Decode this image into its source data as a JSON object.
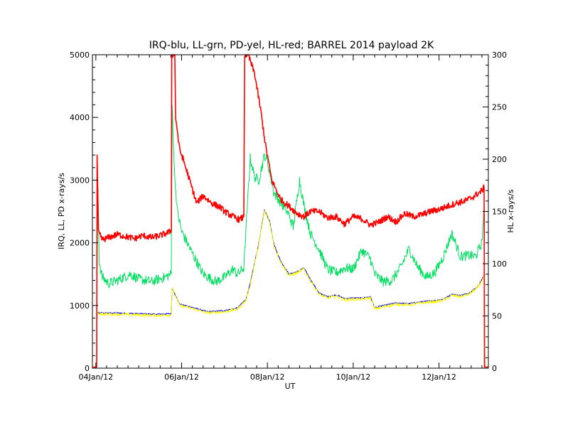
{
  "chart_data": {
    "type": "line",
    "title": "IRQ-blu, LL-grn, PD-yel, HL-red; BARREL 2014 payload 2K",
    "xlabel": "UT",
    "ylabel_left": "IRQ, LL, PD x-rays/s",
    "ylabel_right": "HL x-rays/s",
    "x_range_days": [
      3.92,
      13.15
    ],
    "x_ticks": [
      {
        "value": 4,
        "label": "04Jan/12"
      },
      {
        "value": 6,
        "label": "06Jan/12"
      },
      {
        "value": 8,
        "label": "08Jan/12"
      },
      {
        "value": 10,
        "label": "10Jan/12"
      },
      {
        "value": 12,
        "label": "12Jan/12"
      }
    ],
    "y_left": {
      "range": [
        0,
        5000
      ],
      "ticks": [
        0,
        1000,
        2000,
        3000,
        4000,
        5000
      ]
    },
    "y_right": {
      "range": [
        0,
        300
      ],
      "ticks": [
        0,
        50,
        100,
        150,
        200,
        250,
        300
      ]
    },
    "series": [
      {
        "name": "IRQ",
        "color": "#0000ff",
        "axis": "left",
        "noise": 10,
        "points": [
          [
            3.92,
            20
          ],
          [
            4.02,
            20
          ],
          [
            4.03,
            880
          ],
          [
            4.2,
            880
          ],
          [
            4.5,
            880
          ],
          [
            5.0,
            870
          ],
          [
            5.4,
            860
          ],
          [
            5.76,
            870
          ],
          [
            5.78,
            1280
          ],
          [
            5.95,
            1020
          ],
          [
            6.2,
            980
          ],
          [
            6.6,
            900
          ],
          [
            7.0,
            920
          ],
          [
            7.3,
            960
          ],
          [
            7.5,
            1100
          ],
          [
            7.6,
            1350
          ],
          [
            7.8,
            2000
          ],
          [
            7.93,
            2520
          ],
          [
            8.05,
            2350
          ],
          [
            8.15,
            1980
          ],
          [
            8.3,
            1720
          ],
          [
            8.5,
            1500
          ],
          [
            8.7,
            1540
          ],
          [
            8.85,
            1600
          ],
          [
            9.0,
            1420
          ],
          [
            9.2,
            1200
          ],
          [
            9.4,
            1140
          ],
          [
            9.6,
            1170
          ],
          [
            9.8,
            1110
          ],
          [
            10.0,
            1120
          ],
          [
            10.2,
            1120
          ],
          [
            10.4,
            1140
          ],
          [
            10.5,
            960
          ],
          [
            10.7,
            1000
          ],
          [
            11.0,
            1040
          ],
          [
            11.3,
            1030
          ],
          [
            11.6,
            1060
          ],
          [
            11.9,
            1080
          ],
          [
            12.1,
            1100
          ],
          [
            12.3,
            1180
          ],
          [
            12.5,
            1160
          ],
          [
            12.7,
            1200
          ],
          [
            12.9,
            1300
          ],
          [
            13.05,
            1480
          ],
          [
            13.07,
            20
          ],
          [
            13.15,
            20
          ]
        ]
      },
      {
        "name": "LL",
        "color": "#00e060",
        "axis": "left",
        "noise": 80,
        "points": [
          [
            3.92,
            20
          ],
          [
            4.02,
            20
          ],
          [
            4.03,
            1500
          ],
          [
            4.05,
            2900
          ],
          [
            4.08,
            1700
          ],
          [
            4.15,
            1450
          ],
          [
            4.3,
            1350
          ],
          [
            4.5,
            1400
          ],
          [
            4.8,
            1500
          ],
          [
            5.0,
            1420
          ],
          [
            5.3,
            1380
          ],
          [
            5.6,
            1450
          ],
          [
            5.76,
            1500
          ],
          [
            5.78,
            4200
          ],
          [
            5.83,
            3150
          ],
          [
            5.9,
            2500
          ],
          [
            6.0,
            2180
          ],
          [
            6.2,
            1900
          ],
          [
            6.5,
            1500
          ],
          [
            6.8,
            1380
          ],
          [
            7.0,
            1450
          ],
          [
            7.2,
            1580
          ],
          [
            7.3,
            1500
          ],
          [
            7.45,
            1600
          ],
          [
            7.55,
            2800
          ],
          [
            7.6,
            3350
          ],
          [
            7.7,
            3050
          ],
          [
            7.8,
            3000
          ],
          [
            7.93,
            3400
          ],
          [
            8.0,
            3300
          ],
          [
            8.15,
            2800
          ],
          [
            8.3,
            2650
          ],
          [
            8.5,
            2450
          ],
          [
            8.6,
            2250
          ],
          [
            8.75,
            3000
          ],
          [
            8.85,
            2600
          ],
          [
            9.0,
            2150
          ],
          [
            9.2,
            1900
          ],
          [
            9.4,
            1580
          ],
          [
            9.6,
            1520
          ],
          [
            9.8,
            1600
          ],
          [
            10.0,
            1580
          ],
          [
            10.2,
            1880
          ],
          [
            10.4,
            1750
          ],
          [
            10.5,
            1500
          ],
          [
            10.7,
            1380
          ],
          [
            10.9,
            1400
          ],
          [
            11.1,
            1600
          ],
          [
            11.3,
            1900
          ],
          [
            11.5,
            1620
          ],
          [
            11.7,
            1450
          ],
          [
            11.9,
            1520
          ],
          [
            12.1,
            1780
          ],
          [
            12.3,
            2150
          ],
          [
            12.5,
            1780
          ],
          [
            12.7,
            1800
          ],
          [
            12.85,
            1780
          ],
          [
            13.0,
            2000
          ],
          [
            13.05,
            2600
          ],
          [
            13.07,
            20
          ],
          [
            13.15,
            20
          ]
        ]
      },
      {
        "name": "PD",
        "color": "#ffff00",
        "axis": "left",
        "noise": 25,
        "points": [
          [
            3.92,
            20
          ],
          [
            4.02,
            20
          ],
          [
            4.03,
            880
          ],
          [
            4.2,
            860
          ],
          [
            4.5,
            860
          ],
          [
            5.0,
            850
          ],
          [
            5.4,
            840
          ],
          [
            5.76,
            850
          ],
          [
            5.78,
            1300
          ],
          [
            5.95,
            1000
          ],
          [
            6.2,
            960
          ],
          [
            6.6,
            880
          ],
          [
            7.0,
            900
          ],
          [
            7.3,
            940
          ],
          [
            7.5,
            1080
          ],
          [
            7.6,
            1330
          ],
          [
            7.8,
            1980
          ],
          [
            7.93,
            2500
          ],
          [
            8.05,
            2330
          ],
          [
            8.15,
            1960
          ],
          [
            8.3,
            1700
          ],
          [
            8.5,
            1480
          ],
          [
            8.7,
            1520
          ],
          [
            8.85,
            1580
          ],
          [
            9.0,
            1400
          ],
          [
            9.2,
            1180
          ],
          [
            9.4,
            1120
          ],
          [
            9.6,
            1150
          ],
          [
            9.8,
            1090
          ],
          [
            10.0,
            1100
          ],
          [
            10.2,
            1100
          ],
          [
            10.4,
            1120
          ],
          [
            10.5,
            940
          ],
          [
            10.7,
            980
          ],
          [
            11.0,
            1020
          ],
          [
            11.3,
            1010
          ],
          [
            11.6,
            1040
          ],
          [
            11.9,
            1060
          ],
          [
            12.1,
            1080
          ],
          [
            12.3,
            1160
          ],
          [
            12.5,
            1140
          ],
          [
            12.7,
            1180
          ],
          [
            12.9,
            1280
          ],
          [
            13.05,
            1460
          ],
          [
            13.07,
            20
          ],
          [
            13.15,
            20
          ]
        ]
      },
      {
        "name": "HL",
        "color": "#ff0000",
        "axis": "right",
        "noise": 3,
        "points": [
          [
            3.92,
            1
          ],
          [
            4.02,
            1
          ],
          [
            4.03,
            205
          ],
          [
            4.06,
            130
          ],
          [
            4.15,
            123
          ],
          [
            4.3,
            125
          ],
          [
            4.5,
            128
          ],
          [
            4.7,
            126
          ],
          [
            4.9,
            124
          ],
          [
            5.1,
            127
          ],
          [
            5.3,
            125
          ],
          [
            5.5,
            127
          ],
          [
            5.7,
            130
          ],
          [
            5.76,
            132
          ],
          [
            5.77,
            300
          ],
          [
            5.84,
            300
          ],
          [
            5.86,
            240
          ],
          [
            5.95,
            210
          ],
          [
            6.05,
            198
          ],
          [
            6.2,
            178
          ],
          [
            6.35,
            158
          ],
          [
            6.5,
            165
          ],
          [
            6.7,
            158
          ],
          [
            6.9,
            154
          ],
          [
            7.0,
            150
          ],
          [
            7.2,
            145
          ],
          [
            7.35,
            142
          ],
          [
            7.45,
            145
          ],
          [
            7.47,
            300
          ],
          [
            7.55,
            300
          ],
          [
            7.7,
            282
          ],
          [
            7.85,
            245
          ],
          [
            7.95,
            215
          ],
          [
            8.1,
            180
          ],
          [
            8.3,
            162
          ],
          [
            8.5,
            155
          ],
          [
            8.7,
            148
          ],
          [
            8.85,
            145
          ],
          [
            9.0,
            150
          ],
          [
            9.2,
            150
          ],
          [
            9.4,
            144
          ],
          [
            9.6,
            145
          ],
          [
            9.8,
            138
          ],
          [
            10.0,
            145
          ],
          [
            10.2,
            143
          ],
          [
            10.4,
            137
          ],
          [
            10.6,
            140
          ],
          [
            10.8,
            145
          ],
          [
            11.0,
            140
          ],
          [
            11.2,
            148
          ],
          [
            11.4,
            145
          ],
          [
            11.6,
            147
          ],
          [
            11.8,
            150
          ],
          [
            12.0,
            152
          ],
          [
            12.2,
            155
          ],
          [
            12.4,
            158
          ],
          [
            12.6,
            160
          ],
          [
            12.8,
            164
          ],
          [
            13.0,
            170
          ],
          [
            13.05,
            173
          ],
          [
            13.06,
            1
          ],
          [
            13.15,
            1
          ]
        ]
      }
    ]
  }
}
